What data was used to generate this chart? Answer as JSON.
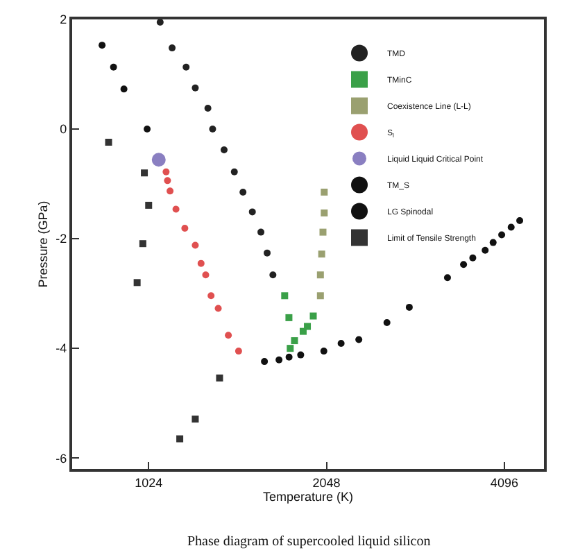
{
  "chart_data": {
    "type": "scatter",
    "xlabel": "Temperature (K)",
    "ylabel": "Pressure (GPa)",
    "log": "x",
    "xlim": [
      760,
      4780
    ],
    "xticks": [
      1024,
      2048,
      4096
    ],
    "ylim": [
      -6.2,
      2
    ],
    "yticks": [
      -6,
      -4,
      -2,
      0,
      2
    ],
    "grid": false,
    "legend": "top right",
    "annotations": [
      "Phase diagram of supercooled liquid silicon"
    ],
    "series": [
      {
        "name": "TMD",
        "color": "#222222",
        "marker": "circle",
        "x": [
          1071,
          1122,
          1185,
          1228,
          1290,
          1314,
          1374,
          1430,
          1479,
          1534,
          1586,
          1625,
          1662
        ],
        "values": [
          1.95,
          1.48,
          1.13,
          0.75,
          0.38,
          0,
          -0.38,
          -0.78,
          -1.15,
          -1.51,
          -1.88,
          -2.26,
          -2.66
        ]
      },
      {
        "name": "TMinC",
        "color": "#3aa048",
        "marker": "square",
        "x": [
          1740,
          1769,
          1778,
          1808,
          1870,
          1901,
          1945
        ],
        "values": [
          -3.04,
          -3.44,
          -4.0,
          -3.86,
          -3.69,
          -3.6,
          -3.41
        ]
      },
      {
        "name": "Coexistence Line (L-L)",
        "color": "#9aa070",
        "marker": "square",
        "x": [
          2030,
          2030,
          2020,
          2010,
          2000,
          2000
        ],
        "values": [
          -1.15,
          -1.53,
          -1.88,
          -2.28,
          -2.66,
          -3.04
        ]
      },
      {
        "name": "S$_{l}$",
        "color": "#e05050",
        "marker": "circle",
        "x": [
          1096,
          1102,
          1113,
          1139,
          1179,
          1228,
          1256,
          1279,
          1306,
          1343,
          1397,
          1454
        ],
        "values": [
          -0.78,
          -0.94,
          -1.13,
          -1.46,
          -1.81,
          -2.12,
          -2.45,
          -2.66,
          -3.04,
          -3.27,
          -3.76,
          -4.05
        ]
      },
      {
        "name": "Liquid Liquid Critical Point",
        "type": "bubble",
        "color": "#5a4aa8",
        "marker": "circle",
        "sizes": [
          1
        ],
        "x": [
          1065
        ],
        "values": [
          -0.56
        ]
      },
      {
        "name": "TM_S",
        "color": "#111111",
        "marker": "circle",
        "x": [
          854,
          893,
          930,
          1018
        ],
        "values": [
          1.53,
          1.13,
          0.73,
          0
        ]
      },
      {
        "name": "LG Spinodal",
        "color": "#111111",
        "marker": "circle",
        "x": [
          1608,
          1702,
          1770,
          1852,
          2027,
          2168,
          2323,
          2592,
          2828,
          3282,
          3494,
          3622,
          3801,
          3921,
          4054,
          4206,
          4349
        ],
        "values": [
          -4.24,
          -4.21,
          -4.16,
          -4.12,
          -4.05,
          -3.91,
          -3.84,
          -3.53,
          -3.25,
          -2.71,
          -2.47,
          -2.35,
          -2.21,
          -2.07,
          -1.93,
          -1.79,
          -1.67
        ]
      },
      {
        "name": "Limit of Tensile Strength",
        "color": "#333333",
        "marker": "square",
        "x": [
          876,
          1007,
          1024,
          1001,
          979,
          1350,
          1228,
          1156
        ],
        "values": [
          -0.24,
          -0.8,
          -1.39,
          -2.09,
          -2.8,
          -4.54,
          -5.29,
          -5.65
        ]
      }
    ]
  }
}
